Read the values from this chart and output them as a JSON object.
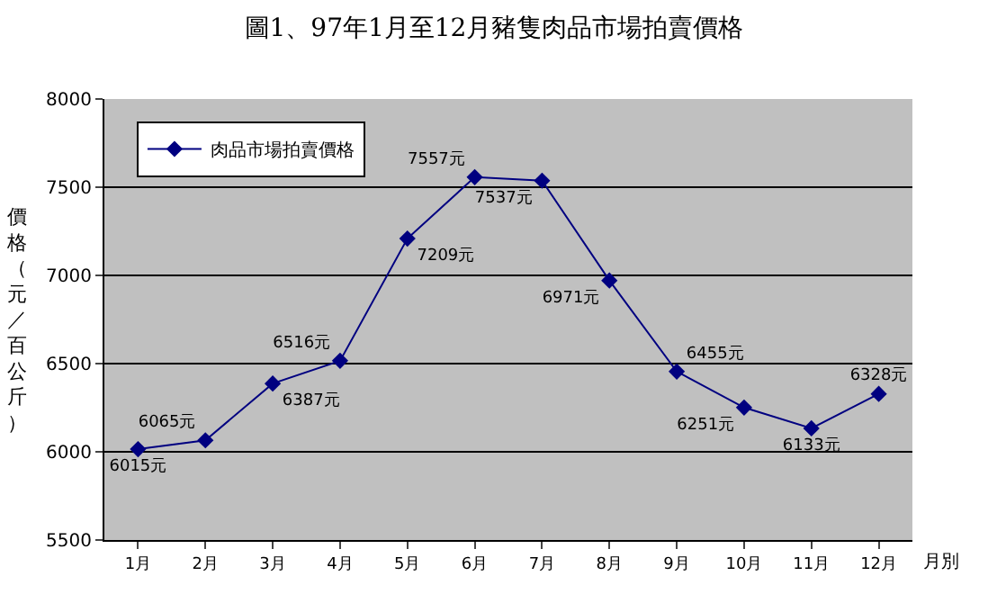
{
  "chart_data": {
    "type": "line",
    "title": "圖1、97年1月至12月豬隻肉品市場拍賣價格",
    "xlabel": "月別",
    "ylabel": "價格（元／百公斤）",
    "categories": [
      "1月",
      "2月",
      "3月",
      "4月",
      "5月",
      "6月",
      "7月",
      "8月",
      "9月",
      "10月",
      "11月",
      "12月"
    ],
    "series": [
      {
        "name": "肉品市場拍賣價格",
        "color": "#000080",
        "values": [
          6015,
          6065,
          6387,
          6516,
          7209,
          7557,
          7537,
          6971,
          6455,
          6251,
          6133,
          6328
        ],
        "value_labels": [
          "6015元",
          "6065元",
          "6387元",
          "6516元",
          "7209元",
          "7557元",
          "7537元",
          "6971元",
          "6455元",
          "6251元",
          "6133元",
          "6328元"
        ]
      }
    ],
    "ylim": [
      5500,
      8000
    ],
    "yticks": [
      5500,
      6000,
      6500,
      7000,
      7500,
      8000
    ],
    "grid": "y",
    "legend": "top left",
    "marker": "diamond",
    "line_style": "solid"
  }
}
